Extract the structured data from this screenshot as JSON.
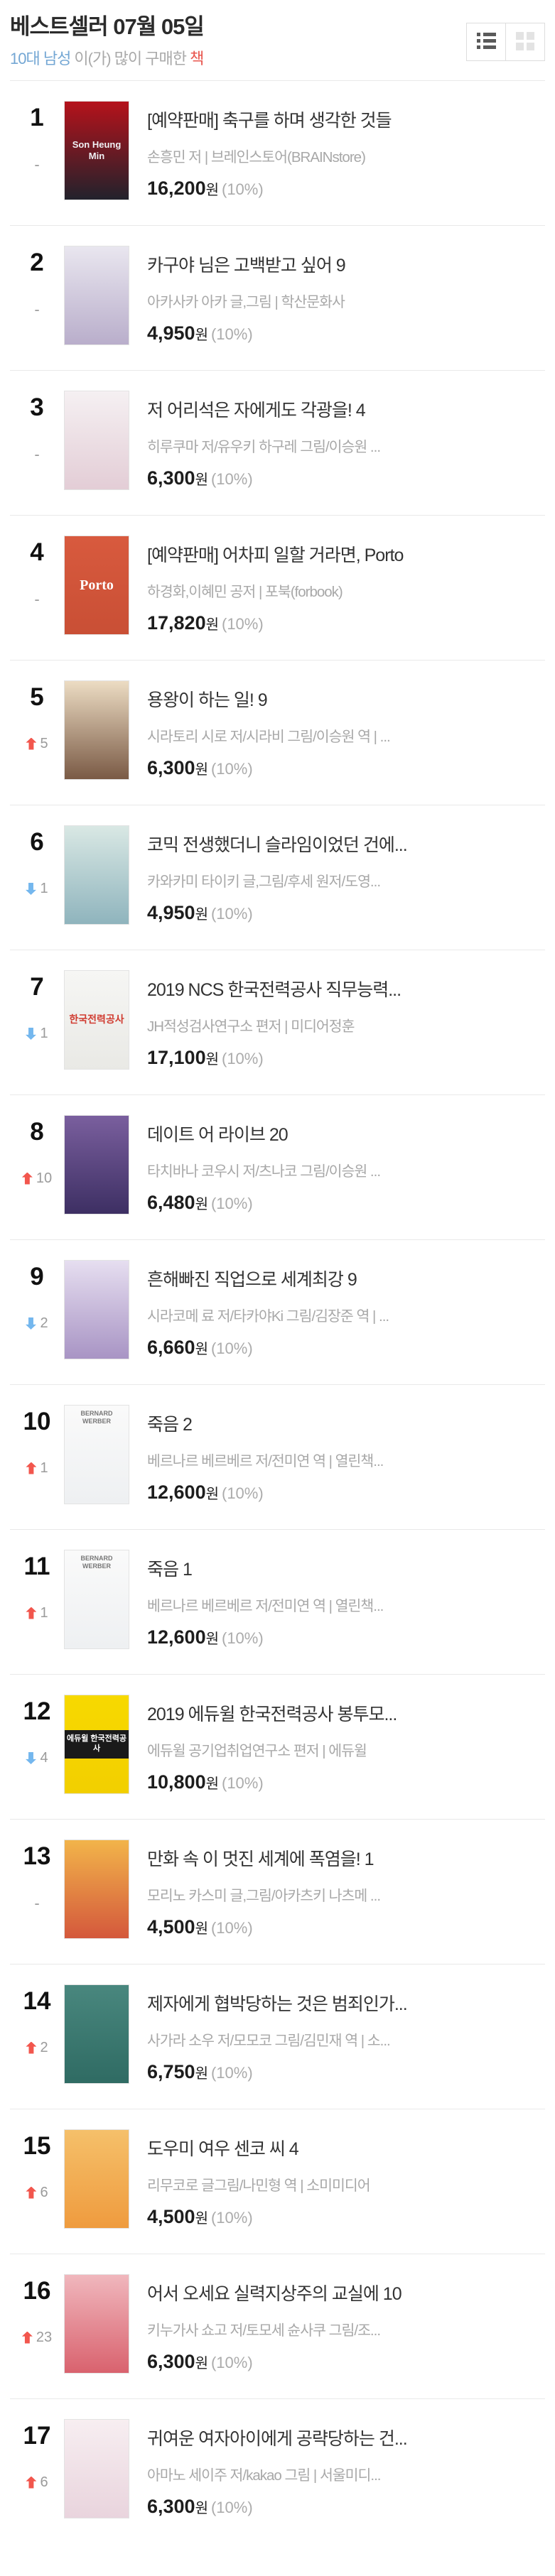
{
  "header": {
    "title": "베스트셀러 07월 05일",
    "subtitle": {
      "demographic": "10대 남성",
      "middle": " 이(가) 많이 구매한 ",
      "object": "책"
    },
    "view_toggle": {
      "active": "list",
      "icons": [
        "list-view-icon",
        "grid-view-icon"
      ]
    }
  },
  "colors": {
    "rank_up_arrow": "#f2564d",
    "rank_down_arrow": "#74b7ee",
    "subtitle_blue": "#74a7d4",
    "subtitle_red": "#e8564e",
    "muted_text": "#a8a8a8",
    "divider": "#e9e9e9"
  },
  "price_suffix": "원",
  "books": [
    {
      "rank": "1",
      "change_dir": "same",
      "change_value": "-",
      "title": "[예약판매] 축구를 하며 생각한 것들",
      "authors": "손흥민 저 | 브레인스토어(BRAINstore)",
      "price": "16,200",
      "discount": "(10%)",
      "cover": {
        "c1": "#b5121b",
        "c2": "#22222c",
        "label": "Son Heung Min",
        "lc": "#f0f0f4",
        "lsize": "13px"
      }
    },
    {
      "rank": "2",
      "change_dir": "same",
      "change_value": "-",
      "title": "카구야 님은 고백받고 싶어 9",
      "authors": "아카사카 아카 글,그림 | 학산문화사",
      "price": "4,950",
      "discount": "(10%)",
      "cover": {
        "c1": "#e9e6ef",
        "c2": "#b9aecb"
      }
    },
    {
      "rank": "3",
      "change_dir": "same",
      "change_value": "-",
      "title": "저 어리석은 자에게도 각광을! 4",
      "authors": "히루쿠마 저/유우키 하구레 그림/이승원 ...",
      "price": "6,300",
      "discount": "(10%)",
      "cover": {
        "c1": "#f5f0f2",
        "c2": "#e3cdd6"
      }
    },
    {
      "rank": "4",
      "change_dir": "same",
      "change_value": "-",
      "title": "[예약판매] 어차피 일할 거라면, Porto",
      "authors": "하경화,이혜민 공저 | 포북(forbook)",
      "price": "17,820",
      "discount": "(10%)",
      "cover": {
        "c1": "#d85a3e",
        "c2": "#c94f35",
        "label": "Porto",
        "lc": "#ffffff",
        "lsize": "20px",
        "serif": true
      }
    },
    {
      "rank": "5",
      "change_dir": "up",
      "change_value": "5",
      "title": "용왕이 하는 일! 9",
      "authors": "시라토리 시로 저/시라비 그림/이승원 역 | ...",
      "price": "6,300",
      "discount": "(10%)",
      "cover": {
        "c1": "#ecdcc3",
        "c2": "#7a5a45"
      }
    },
    {
      "rank": "6",
      "change_dir": "down",
      "change_value": "1",
      "title": "코믹 전생했더니 슬라임이었던 건에...",
      "authors": "카와카미 타이키 글,그림/후세 원저/도영...",
      "price": "4,950",
      "discount": "(10%)",
      "cover": {
        "c1": "#d9e8e4",
        "c2": "#8fb4bd"
      }
    },
    {
      "rank": "7",
      "change_dir": "down",
      "change_value": "1",
      "title": "2019 NCS 한국전력공사 직무능력...",
      "authors": "JH적성검사연구소 편저 | 미디어정훈",
      "price": "17,100",
      "discount": "(10%)",
      "cover": {
        "c1": "#f6f6f4",
        "c2": "#e9e9e5",
        "label": "한국전력공사",
        "lc": "#d03a2f",
        "lsize": "14px"
      }
    },
    {
      "rank": "8",
      "change_dir": "up",
      "change_value": "10",
      "title": "데이트 어 라이브 20",
      "authors": "타치바나 코우시 저/츠나코 그림/이승원 ...",
      "price": "6,480",
      "discount": "(10%)",
      "cover": {
        "c1": "#7a5f9e",
        "c2": "#3d2f63"
      }
    },
    {
      "rank": "9",
      "change_dir": "down",
      "change_value": "2",
      "title": "흔해빠진 직업으로 세계최강 9",
      "authors": "시라코메 료 저/타카야Ki 그림/김장준 역 | ...",
      "price": "6,660",
      "discount": "(10%)",
      "cover": {
        "c1": "#e6def0",
        "c2": "#a894c4"
      }
    },
    {
      "rank": "10",
      "change_dir": "up",
      "change_value": "1",
      "title": "죽음 2",
      "authors": "베르나르 베르베르 저/전미연 역 | 열린책...",
      "price": "12,600",
      "discount": "(10%)",
      "cover": {
        "c1": "#fafafa",
        "c2": "#eef0f2",
        "label": "BERNARD WERBER",
        "lc": "#777777",
        "lsize": "9px",
        "lpos": "top"
      }
    },
    {
      "rank": "11",
      "change_dir": "up",
      "change_value": "1",
      "title": "죽음 1",
      "authors": "베르나르 베르베르 저/전미연 역 | 열린책...",
      "price": "12,600",
      "discount": "(10%)",
      "cover": {
        "c1": "#fafafa",
        "c2": "#eef0f2",
        "label": "BERNARD WERBER",
        "lc": "#777777",
        "lsize": "9px",
        "lpos": "top"
      }
    },
    {
      "rank": "12",
      "change_dir": "down",
      "change_value": "4",
      "title": "2019 에듀윌 한국전력공사 봉투모...",
      "authors": "에듀윌 공기업취업연구소 편저 | 에듀윌",
      "price": "10,800",
      "discount": "(10%)",
      "cover": {
        "c1": "#f7d900",
        "c2": "#f2cf00",
        "label": "에듀윌 한국전력공사",
        "lc": "#ffffff",
        "lbg": "#1a1a1a",
        "lsize": "11px"
      }
    },
    {
      "rank": "13",
      "change_dir": "same",
      "change_value": "-",
      "title": "만화 속 이 멋진 세계에 폭염을! 1",
      "authors": "모리노 카스미 글,그림/아카츠키 나츠메 ...",
      "price": "4,500",
      "discount": "(10%)",
      "cover": {
        "c1": "#f2b44a",
        "c2": "#d4583c"
      }
    },
    {
      "rank": "14",
      "change_dir": "up",
      "change_value": "2",
      "title": "제자에게 협박당하는 것은 범죄인가...",
      "authors": "사가라 소우 저/모모코 그림/김민재 역 | 소...",
      "price": "6,750",
      "discount": "(10%)",
      "cover": {
        "c1": "#49877e",
        "c2": "#2f6b63"
      }
    },
    {
      "rank": "15",
      "change_dir": "up",
      "change_value": "6",
      "title": "도우미 여우 센코 씨 4",
      "authors": "리무코로 글그림/나민형 역 | 소미미디어",
      "price": "4,500",
      "discount": "(10%)",
      "cover": {
        "c1": "#f5c06a",
        "c2": "#ef9b3e"
      }
    },
    {
      "rank": "16",
      "change_dir": "up",
      "change_value": "23",
      "title": "어서 오세요 실력지상주의 교실에 10",
      "authors": "키누가사 쇼고 저/토모세 슌사쿠 그림/조...",
      "price": "6,300",
      "discount": "(10%)",
      "cover": {
        "c1": "#f0b7bd",
        "c2": "#d9626e"
      }
    },
    {
      "rank": "17",
      "change_dir": "up",
      "change_value": "6",
      "title": "귀여운 여자아이에게 공략당하는 건...",
      "authors": "아마노 세이주 저/kakao 그림 | 서울미디...",
      "price": "6,300",
      "discount": "(10%)",
      "cover": {
        "c1": "#f7eef1",
        "c2": "#e9d4dd"
      }
    }
  ]
}
